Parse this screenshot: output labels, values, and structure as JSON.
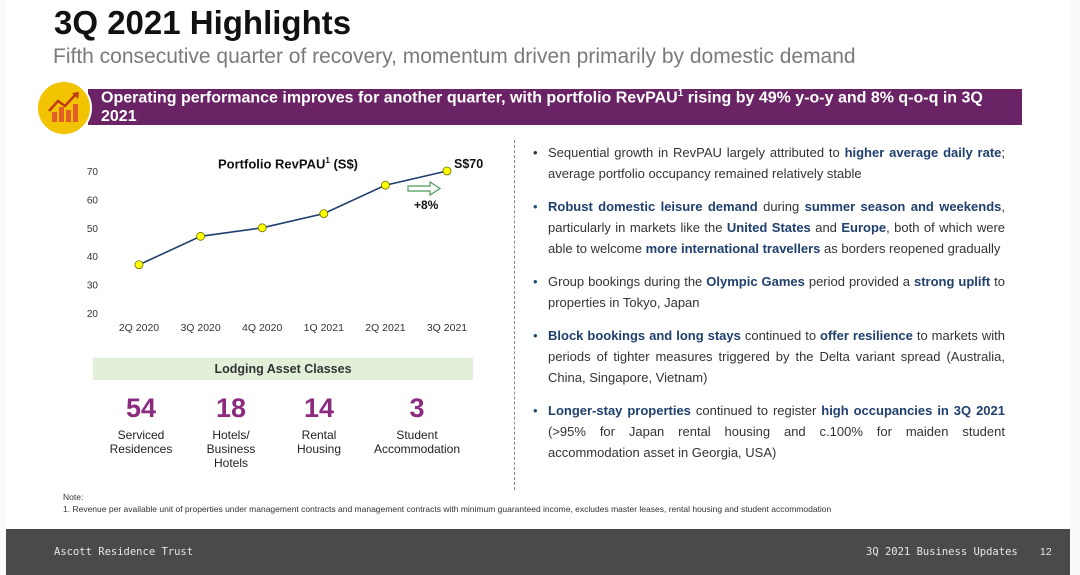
{
  "slide": {
    "title": "3Q 2021 Highlights",
    "subtitle": "Fifth consecutive quarter of recovery, momentum driven primarily by domestic demand",
    "banner_text": "Operating performance improves for another quarter, with portfolio RevPAU",
    "banner_sup": "1",
    "banner_text_2": " rising by 49% y-o-y and 8% q-o-q in 3Q 2021",
    "banner_icon": "rising-chart-icon"
  },
  "chart_data": {
    "type": "line",
    "title": "Portfolio RevPAU",
    "title_sup": "1",
    "title_suffix": " (S$)",
    "categories": [
      "2Q 2020",
      "3Q 2020",
      "4Q 2020",
      "1Q 2021",
      "2Q 2021",
      "3Q 2021"
    ],
    "values": [
      37,
      47,
      50,
      55,
      65,
      70
    ],
    "ylim": [
      20,
      70
    ],
    "yticks": [
      "70",
      "60",
      "50",
      "40",
      "30",
      "20"
    ],
    "end_label": "S$70",
    "growth_annotation": "+8%",
    "line_color": "#1f3f6e",
    "marker_color": "#ffff00",
    "grid": false
  },
  "lodging": {
    "header": "Lodging Asset Classes",
    "items": [
      {
        "value": "54",
        "label_lines": [
          "Serviced",
          "Residences"
        ]
      },
      {
        "value": "18",
        "label_lines": [
          "Hotels/",
          "Business",
          "Hotels"
        ]
      },
      {
        "value": "14",
        "label_lines": [
          "Rental",
          "Housing"
        ]
      },
      {
        "value": "3",
        "label_lines": [
          "Student",
          "Accommodation"
        ]
      }
    ]
  },
  "bullets": [
    {
      "parts": [
        {
          "t": "Sequential growth in RevPAU largely attributed to ",
          "h": false
        },
        {
          "t": "higher average daily rate",
          "h": true
        },
        {
          "t": "; average portfolio occupancy remained relatively stable",
          "h": false
        }
      ]
    },
    {
      "parts": [
        {
          "t": "Robust domestic leisure demand",
          "h": true
        },
        {
          "t": " during ",
          "h": false
        },
        {
          "t": "summer season and weekends",
          "h": true
        },
        {
          "t": ", particularly in markets like the ",
          "h": false
        },
        {
          "t": "United States",
          "h": true
        },
        {
          "t": " and ",
          "h": false
        },
        {
          "t": "Europe",
          "h": true
        },
        {
          "t": ", both of which were able to welcome ",
          "h": false
        },
        {
          "t": "more international travellers",
          "h": true
        },
        {
          "t": " as borders reopened gradually",
          "h": false
        }
      ]
    },
    {
      "parts": [
        {
          "t": "Group bookings during the ",
          "h": false
        },
        {
          "t": "Olympic Games",
          "h": true
        },
        {
          "t": " period provided a ",
          "h": false
        },
        {
          "t": "strong uplift",
          "h": true
        },
        {
          "t": " to properties in Tokyo, Japan",
          "h": false
        }
      ]
    },
    {
      "parts": [
        {
          "t": "Block bookings and long stays",
          "h": true
        },
        {
          "t": " continued to ",
          "h": false
        },
        {
          "t": "offer resilience",
          "h": true
        },
        {
          "t": " to markets with periods of tighter measures triggered by the Delta variant spread (Australia, China, Singapore, Vietnam)",
          "h": false
        }
      ]
    },
    {
      "parts": [
        {
          "t": "Longer-stay properties",
          "h": true
        },
        {
          "t": " continued to register ",
          "h": false
        },
        {
          "t": "high occupancies in 3Q 2021",
          "h": true
        },
        {
          "t": " (>95% for Japan rental housing and c.100% for maiden student accommodation asset in Georgia, USA)",
          "h": false
        }
      ]
    }
  ],
  "note": {
    "label": "Note:",
    "text": "1.    Revenue per available unit of properties under management contracts and management contracts with minimum guaranteed income, excludes master leases, rental housing and student accommodation"
  },
  "footer": {
    "company": "Ascott Residence Trust",
    "section": "3Q 2021 Business Updates",
    "page": "12"
  }
}
